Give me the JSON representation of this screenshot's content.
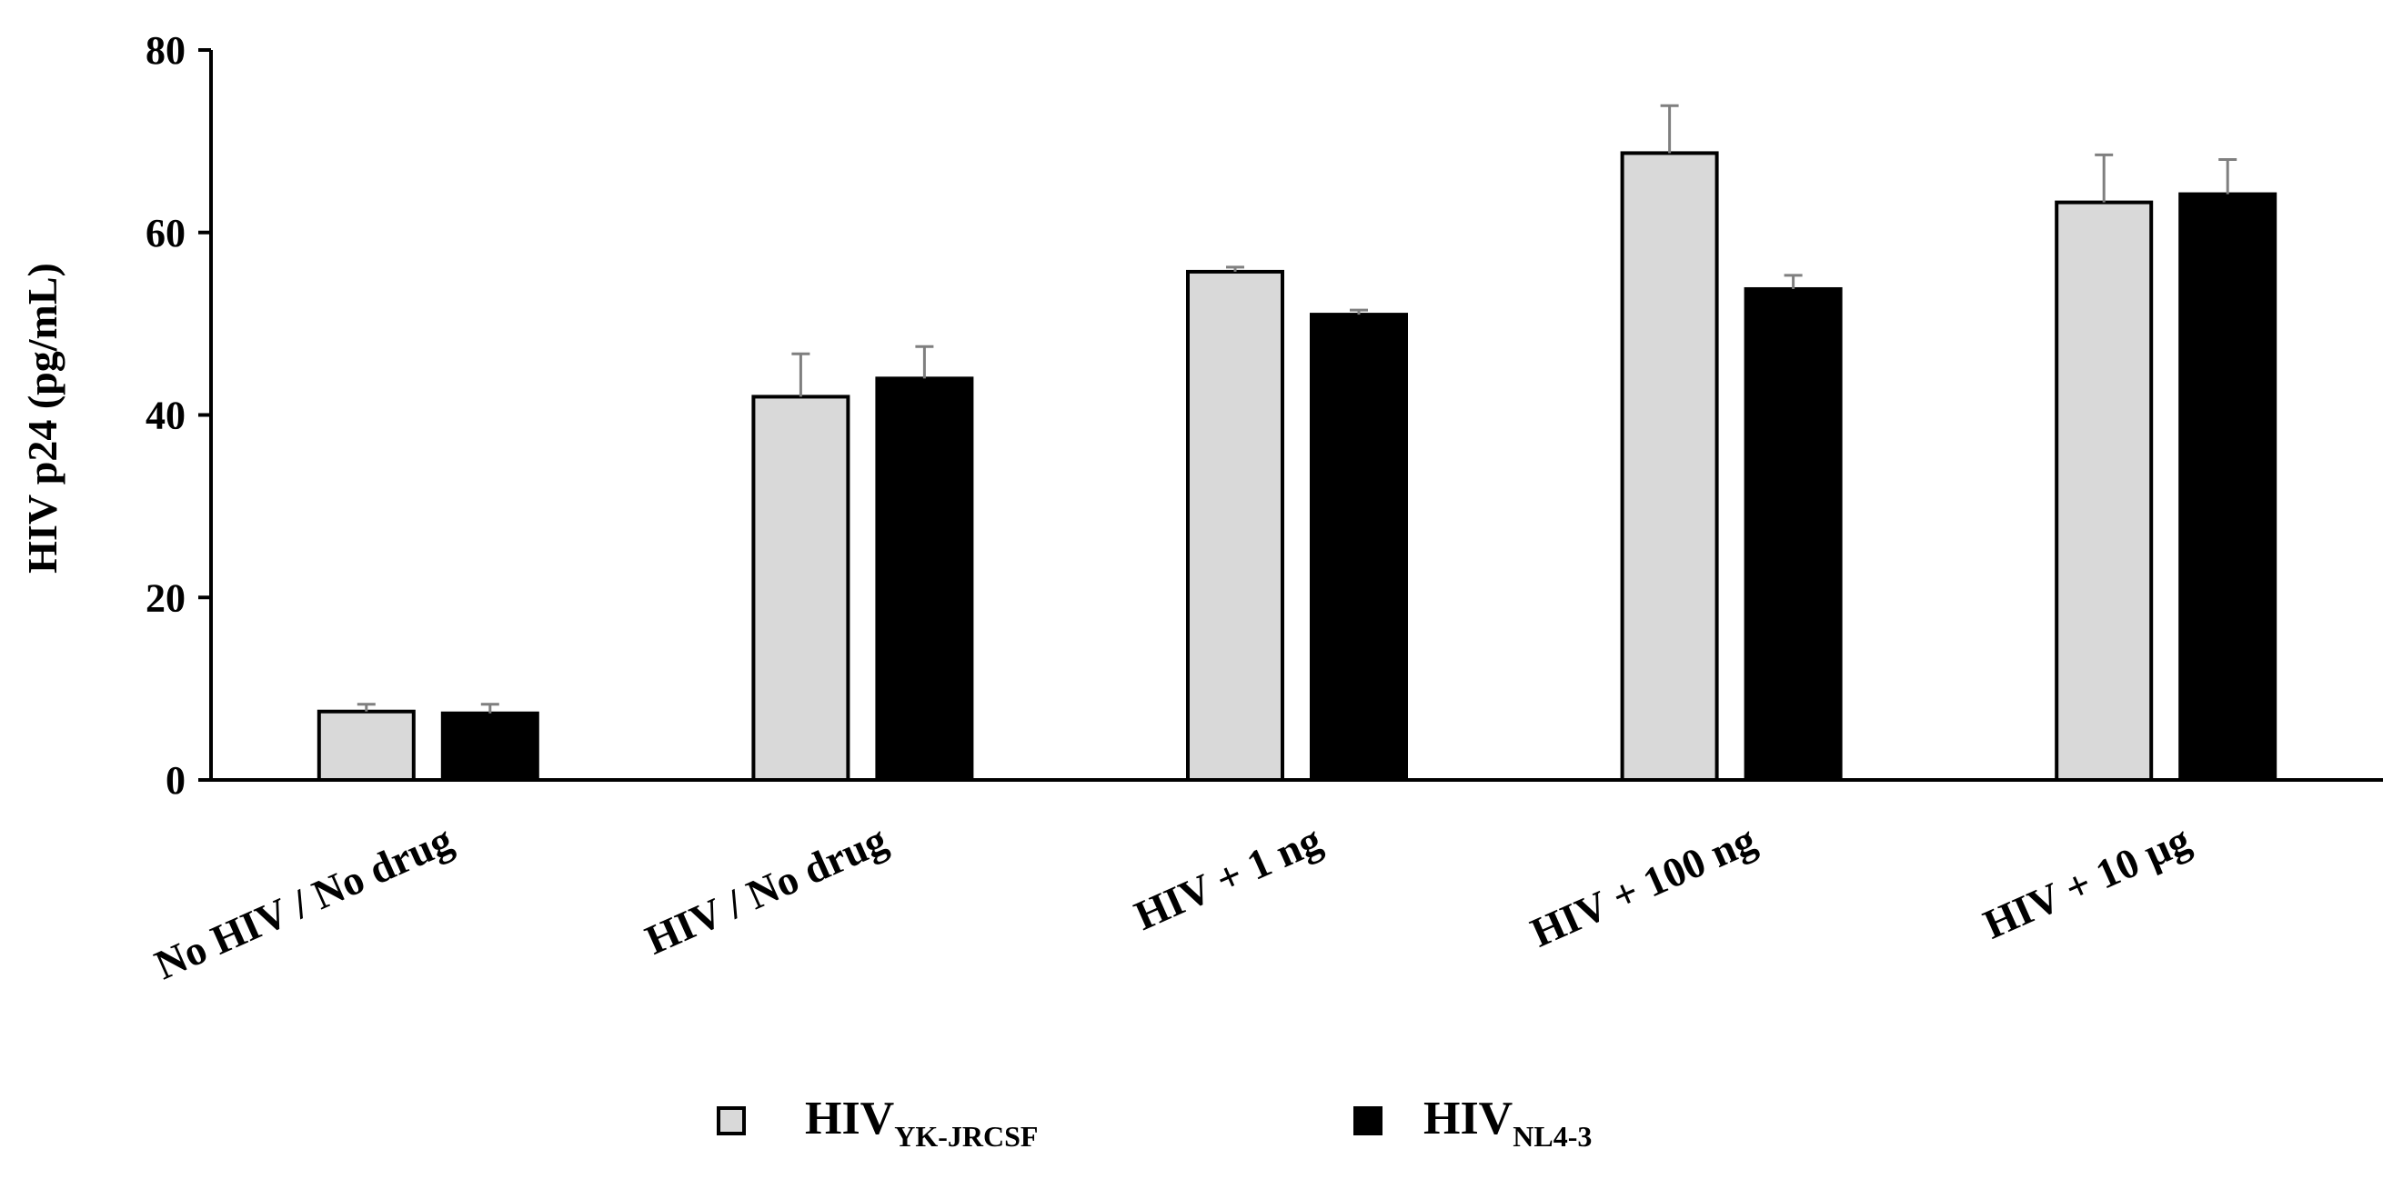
{
  "chart_data": {
    "type": "bar",
    "title": "",
    "xlabel": "",
    "ylabel": "HIV p24 (pg/mL)",
    "ylim": [
      0,
      80
    ],
    "yticks": [
      0,
      20,
      40,
      60,
      80
    ],
    "tick_labels": [
      "0",
      "20",
      "40",
      "60",
      "80"
    ],
    "grid": false,
    "categories": [
      "No HIV / No drug",
      "HIV / No drug",
      "HIV + 1 ng",
      "HIV + 100 ng",
      "HIV + 10 µg"
    ],
    "series": [
      {
        "name": "HIVYK-JRCSF",
        "legend_main": "HIV",
        "legend_sub": "YK-JRCSF",
        "color": "#d9d9d9",
        "values": [
          7.5,
          42,
          55.7,
          68.7,
          63.3
        ],
        "errors": [
          0.8,
          4.7,
          0.5,
          5.2,
          5.2
        ]
      },
      {
        "name": "HIVNL4-3",
        "legend_main": "HIV",
        "legend_sub": "NL4-3",
        "color": "#000000",
        "values": [
          7.3,
          44,
          51,
          53.8,
          64.2
        ],
        "errors": [
          1.0,
          3.5,
          0.5,
          1.5,
          3.8
        ]
      }
    ],
    "legend_position": "bottom-center"
  }
}
